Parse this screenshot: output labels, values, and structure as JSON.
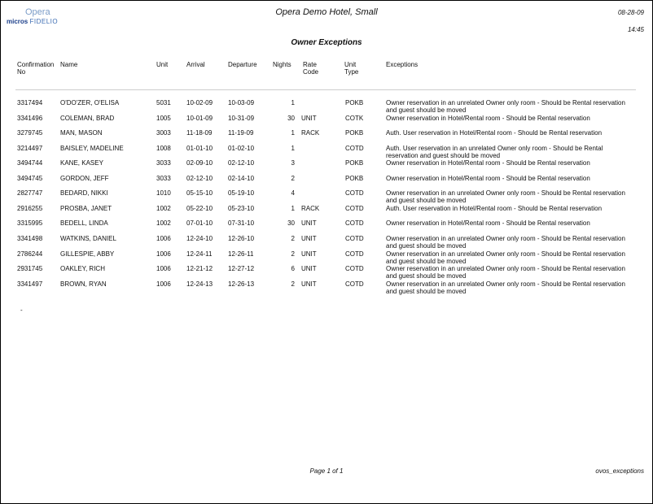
{
  "header": {
    "logo_top": "Opera",
    "logo_bottom_a": "micros",
    "logo_bottom_b": "FIDELIO",
    "hotel": "Opera Demo Hotel, Small",
    "date": "08-28-09",
    "time": "14:45",
    "report_title": "Owner Exceptions"
  },
  "columns": {
    "conf": "Confirmation No",
    "name": "Name",
    "unit": "Unit",
    "arrival": "Arrival",
    "departure": "Departure",
    "nights": "Nights",
    "rate": "Rate Code",
    "unit_type": "Unit Type",
    "exceptions": "Exceptions"
  },
  "rows": [
    {
      "conf": "3317494",
      "name": "O'DO'ZER, O'ELISA",
      "unit": "5031",
      "arrival": "10-02-09",
      "departure": "10-03-09",
      "nights": "1",
      "rate": "",
      "unit_type": "POKB",
      "exceptions": "Owner reservation in an unrelated Owner only room - Should be Rental reservation and guest should be moved"
    },
    {
      "conf": "3341496",
      "name": "COLEMAN, BRAD",
      "unit": "1005",
      "arrival": "10-01-09",
      "departure": "10-31-09",
      "nights": "30",
      "rate": "UNIT",
      "unit_type": "COTK",
      "exceptions": "Owner reservation in Hotel/Rental room - Should be Rental reservation"
    },
    {
      "conf": "3279745",
      "name": "MAN, MASON",
      "unit": "3003",
      "arrival": "11-18-09",
      "departure": "11-19-09",
      "nights": "1",
      "rate": "RACK",
      "unit_type": "POKB",
      "exceptions": "Auth. User reservation in Hotel/Rental room - Should be Rental reservation"
    },
    {
      "conf": "3214497",
      "name": "BAISLEY, MADELINE",
      "unit": "1008",
      "arrival": "01-01-10",
      "departure": "01-02-10",
      "nights": "1",
      "rate": "",
      "unit_type": "COTD",
      "exceptions": "Auth. User reservation in an unrelated Owner only room - Should be Rental reservation and guest should be moved"
    },
    {
      "conf": "3494744",
      "name": "KANE, KASEY",
      "unit": "3033",
      "arrival": "02-09-10",
      "departure": "02-12-10",
      "nights": "3",
      "rate": "",
      "unit_type": "POKB",
      "exceptions": "Owner reservation in Hotel/Rental room - Should be Rental reservation"
    },
    {
      "conf": "3494745",
      "name": "GORDON, JEFF",
      "unit": "3033",
      "arrival": "02-12-10",
      "departure": "02-14-10",
      "nights": "2",
      "rate": "",
      "unit_type": "POKB",
      "exceptions": "Owner reservation in Hotel/Rental room - Should be Rental reservation"
    },
    {
      "conf": "2827747",
      "name": "BEDARD, NIKKI",
      "unit": "1010",
      "arrival": "05-15-10",
      "departure": "05-19-10",
      "nights": "4",
      "rate": "",
      "unit_type": "COTD",
      "exceptions": "Owner reservation in an unrelated Owner only room - Should be Rental reservation and guest should be moved"
    },
    {
      "conf": "2916255",
      "name": "PROSBA, JANET",
      "unit": "1002",
      "arrival": "05-22-10",
      "departure": "05-23-10",
      "nights": "1",
      "rate": "RACK",
      "unit_type": "COTD",
      "exceptions": "Auth. User reservation in Hotel/Rental room - Should be Rental reservation"
    },
    {
      "conf": "3315995",
      "name": "BEDELL, LINDA",
      "unit": "1002",
      "arrival": "07-01-10",
      "departure": "07-31-10",
      "nights": "30",
      "rate": "UNIT",
      "unit_type": "COTD",
      "exceptions": "Owner reservation in Hotel/Rental room - Should be Rental reservation"
    },
    {
      "conf": "3341498",
      "name": "WATKINS, DANIEL",
      "unit": "1006",
      "arrival": "12-24-10",
      "departure": "12-26-10",
      "nights": "2",
      "rate": "UNIT",
      "unit_type": "COTD",
      "exceptions": "Owner reservation in an unrelated Owner only room - Should be Rental reservation and guest should be moved"
    },
    {
      "conf": "2786244",
      "name": "GILLESPIE, ABBY",
      "unit": "1006",
      "arrival": "12-24-11",
      "departure": "12-26-11",
      "nights": "2",
      "rate": "UNIT",
      "unit_type": "COTD",
      "exceptions": "Owner reservation in an unrelated Owner only room - Should be Rental reservation and guest should be moved"
    },
    {
      "conf": "2931745",
      "name": "OAKLEY, RICH",
      "unit": "1006",
      "arrival": "12-21-12",
      "departure": "12-27-12",
      "nights": "6",
      "rate": "UNIT",
      "unit_type": "COTD",
      "exceptions": "Owner reservation in an unrelated Owner only room - Should be Rental reservation and guest should be moved"
    },
    {
      "conf": "3341497",
      "name": "BROWN, RYAN",
      "unit": "1006",
      "arrival": "12-24-13",
      "departure": "12-26-13",
      "nights": "2",
      "rate": "UNIT",
      "unit_type": "COTD",
      "exceptions": "Owner reservation in an unrelated Owner only room - Should be Rental reservation and guest should be moved"
    }
  ],
  "footer": {
    "trailing_mark": "-",
    "page": "Page 1 of 1",
    "report_name": "ovos_exceptions"
  }
}
